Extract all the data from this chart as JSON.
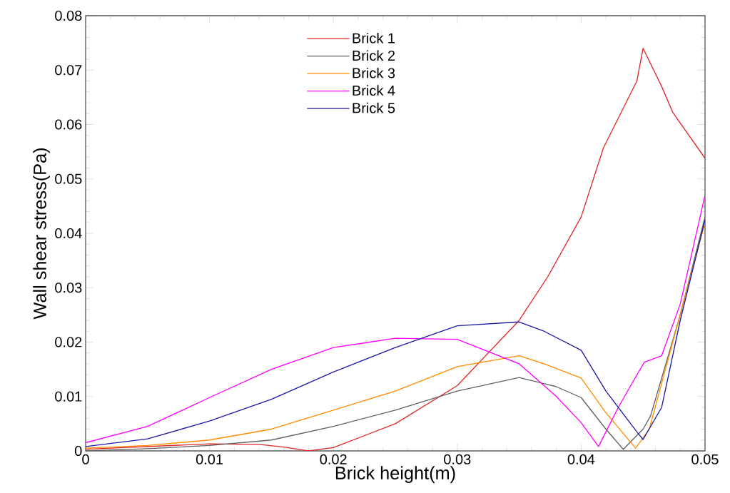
{
  "chart_data": {
    "type": "line",
    "xlabel": "Brick height(m)",
    "ylabel": "Wall shear stress(Pa)",
    "xlim": [
      0,
      0.05
    ],
    "ylim": [
      0,
      0.08
    ],
    "xticks": [
      0,
      0.01,
      0.02,
      0.03,
      0.04,
      0.05
    ],
    "yticks": [
      0,
      0.01,
      0.02,
      0.03,
      0.04,
      0.05,
      0.06,
      0.07,
      0.08
    ],
    "legend": "top",
    "grid": false,
    "marker": "none",
    "line_style": "solid",
    "series": [
      {
        "name": "Brick 1",
        "color": "#e02828",
        "x": [
          0,
          0.005,
          0.01,
          0.014,
          0.016,
          0.018,
          0.02,
          0.025,
          0.03,
          0.035,
          0.0373,
          0.04,
          0.0418,
          0.0445,
          0.045,
          0.0465,
          0.0474,
          0.05
        ],
        "values": [
          0.0003,
          0.0008,
          0.0013,
          0.0012,
          0.0007,
          0.0,
          0.0006,
          0.005,
          0.012,
          0.024,
          0.032,
          0.043,
          0.0557,
          0.068,
          0.074,
          0.067,
          0.0622,
          0.0538
        ]
      },
      {
        "name": "Brick 2",
        "color": "#606060",
        "x": [
          0,
          0.005,
          0.01,
          0.015,
          0.02,
          0.025,
          0.03,
          0.035,
          0.038,
          0.04,
          0.042,
          0.0434,
          0.045,
          0.0456,
          0.048,
          0.05
        ],
        "values": [
          0.0,
          0.0004,
          0.001,
          0.002,
          0.0045,
          0.0075,
          0.011,
          0.0135,
          0.0118,
          0.0098,
          0.004,
          0.0003,
          0.004,
          0.0064,
          0.025,
          0.043
        ]
      },
      {
        "name": "Brick 3",
        "color": "#ff8c00",
        "x": [
          0,
          0.005,
          0.01,
          0.015,
          0.02,
          0.025,
          0.03,
          0.035,
          0.037,
          0.04,
          0.042,
          0.0444,
          0.0455,
          0.048,
          0.05
        ],
        "values": [
          0.0005,
          0.001,
          0.002,
          0.004,
          0.0075,
          0.011,
          0.0155,
          0.0175,
          0.016,
          0.0134,
          0.007,
          0.0005,
          0.004,
          null,
          0.042
        ]
      },
      {
        "name": "Brick 4",
        "color": "#ff00ff",
        "x": [
          0,
          0.005,
          0.01,
          0.015,
          0.02,
          0.025,
          0.03,
          0.035,
          0.038,
          0.04,
          0.0414,
          0.043,
          0.044,
          0.0451,
          0.0465,
          0.048,
          0.05
        ],
        "values": [
          0.0015,
          0.0045,
          0.0098,
          0.015,
          0.019,
          0.0207,
          0.0205,
          0.016,
          0.01,
          0.0052,
          0.0008,
          0.008,
          0.012,
          0.0163,
          0.0175,
          0.027,
          0.047
        ]
      },
      {
        "name": "Brick 5",
        "color": "#1a1aa6",
        "x": [
          0,
          0.005,
          0.01,
          0.015,
          0.02,
          0.025,
          0.03,
          0.035,
          0.037,
          0.04,
          0.042,
          0.0445,
          0.045,
          0.0465,
          0.048,
          0.05
        ],
        "values": [
          0.0008,
          0.0022,
          0.0055,
          0.0095,
          0.0145,
          0.019,
          0.023,
          0.0237,
          0.022,
          0.0185,
          0.011,
          0.0035,
          0.0021,
          0.008,
          0.024,
          0.0425
        ]
      }
    ]
  }
}
